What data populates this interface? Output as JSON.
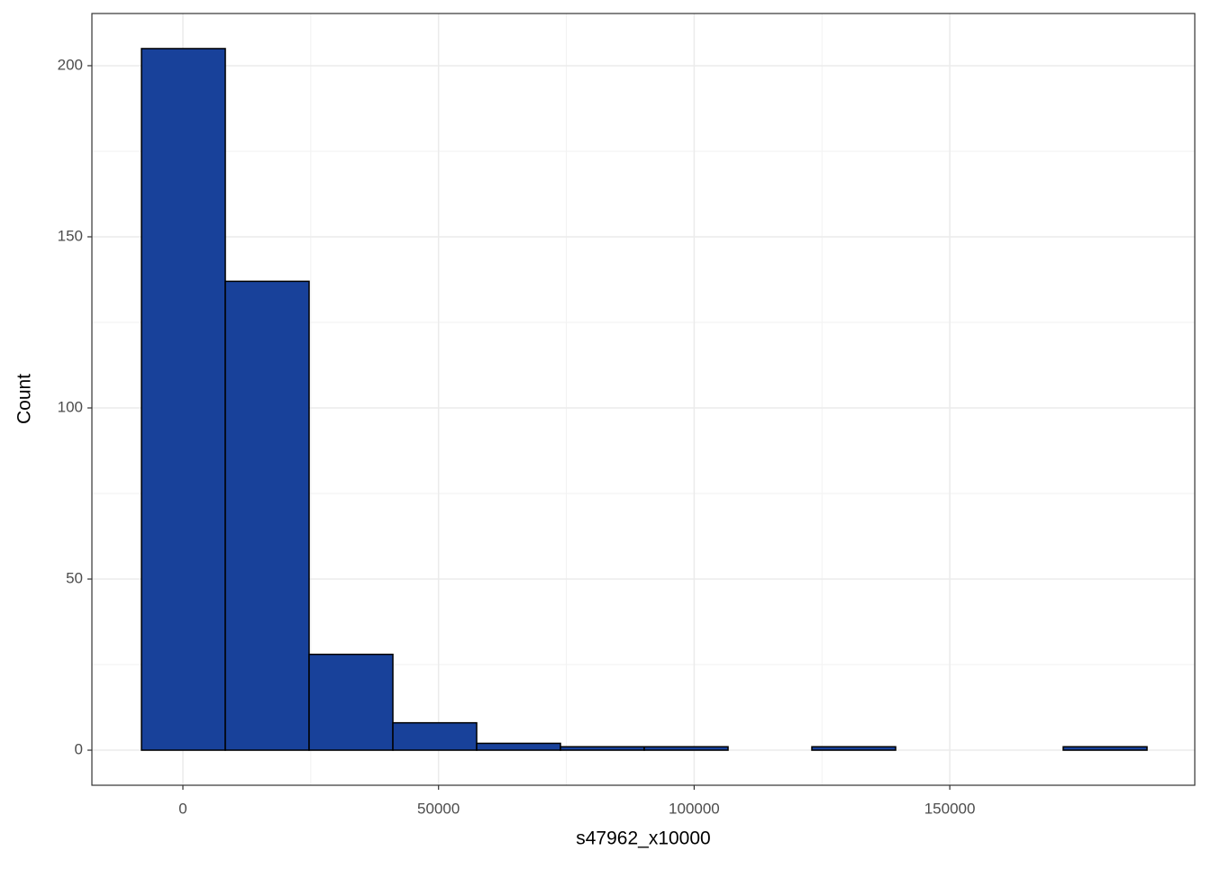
{
  "chart_data": {
    "type": "histogram",
    "x_label": "s47962_x10000",
    "y_label": "Count",
    "bins": [
      -8100,
      8290,
      24680,
      41070,
      57460,
      73850,
      90240,
      106630,
      123020,
      139410,
      155800,
      172190,
      188580
    ],
    "values": [
      205,
      137,
      28,
      8,
      2,
      1,
      1,
      0,
      1,
      0,
      0,
      1
    ],
    "color": "#18419a",
    "edge_color": "#000000",
    "xlim": [
      -17800,
      197920
    ],
    "ylim": [
      -10.25,
      215.25
    ],
    "xticks": [
      0,
      50000,
      100000,
      150000
    ],
    "yticks": [
      0,
      50,
      100,
      150,
      200
    ],
    "grid": true
  }
}
